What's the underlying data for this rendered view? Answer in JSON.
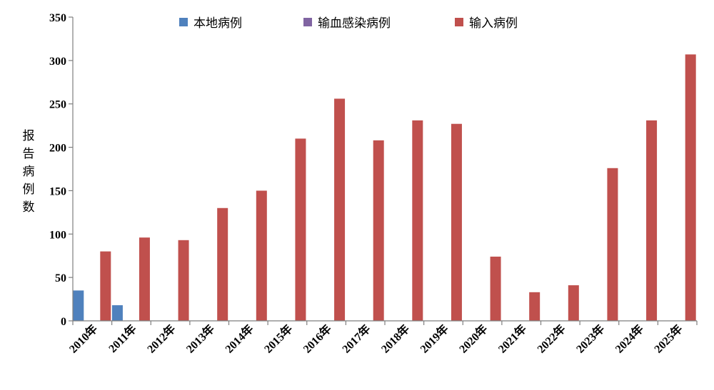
{
  "chart_data": {
    "type": "bar",
    "title": "",
    "xlabel": "",
    "ylabel": "报告病例数",
    "ylim": [
      0,
      350
    ],
    "yticks": [
      0,
      50,
      100,
      150,
      200,
      250,
      300,
      350
    ],
    "grid": false,
    "legend_position": "top",
    "categories": [
      "2010年",
      "2011年",
      "2012年",
      "2013年",
      "2014年",
      "2015年",
      "2016年",
      "2017年",
      "2018年",
      "2019年",
      "2020年",
      "2021年",
      "2022年",
      "2023年",
      "2024年",
      "2025年"
    ],
    "series": [
      {
        "name": "本地病例",
        "color": "#4f81bd",
        "values": [
          35,
          18,
          0,
          0,
          0,
          0,
          0,
          0,
          0,
          0,
          0,
          0,
          0,
          0,
          0,
          0
        ]
      },
      {
        "name": "输血感染病例",
        "color": "#8064a2",
        "values": [
          0,
          0,
          0,
          0,
          0,
          0,
          0,
          0,
          0,
          0,
          0,
          0,
          0,
          0,
          0,
          0
        ]
      },
      {
        "name": "输入病例",
        "color": "#c0504d",
        "values": [
          80,
          96,
          93,
          130,
          150,
          210,
          256,
          208,
          231,
          227,
          74,
          33,
          41,
          176,
          231,
          307
        ]
      }
    ]
  }
}
